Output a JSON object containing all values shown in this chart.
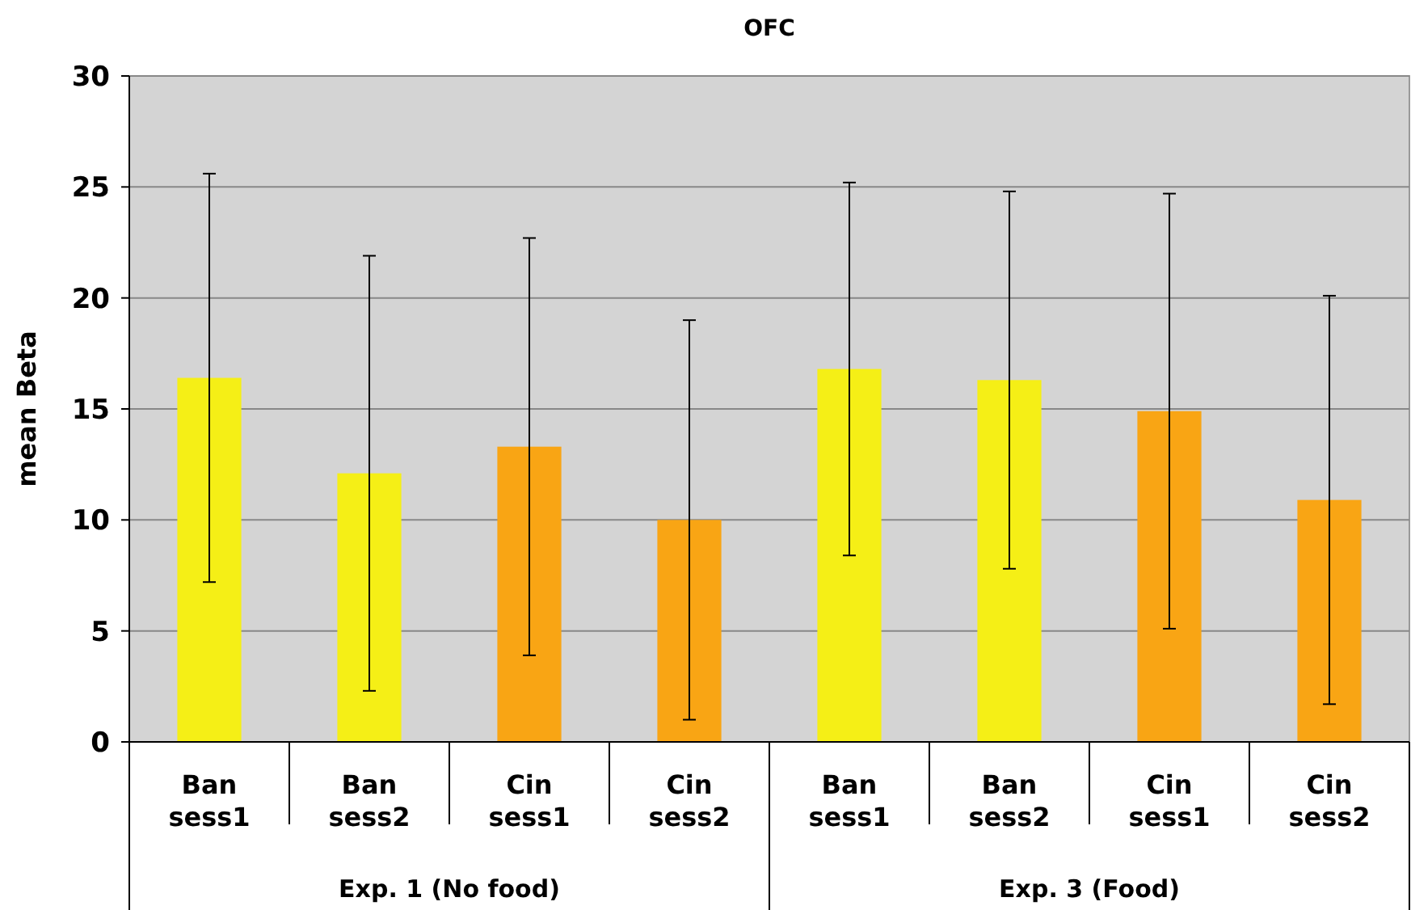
{
  "chart_data": {
    "type": "bar",
    "title": "OFC",
    "ylabel": "mean Beta",
    "categories": [
      "Ban sess1",
      "Ban sess2",
      "Cin sess1",
      "Cin sess2",
      "Ban sess1",
      "Ban sess2",
      "Cin sess1",
      "Cin sess2"
    ],
    "values": [
      16.4,
      12.1,
      13.3,
      10.0,
      16.8,
      16.3,
      14.9,
      10.9
    ],
    "errors": [
      9.2,
      9.8,
      9.4,
      9.0,
      8.4,
      8.5,
      9.8,
      9.2
    ],
    "colors": [
      "#f5ef16",
      "#f5ef16",
      "#f9a514",
      "#f9a514",
      "#f5ef16",
      "#f5ef16",
      "#f9a514",
      "#f9a514"
    ],
    "ylim": [
      0,
      30
    ],
    "yticks": [
      0,
      5,
      10,
      15,
      20,
      25,
      30
    ],
    "grid": "y",
    "annotations": [
      "Exp. 1 (No food)",
      "Exp. 3 (Food)"
    ]
  }
}
